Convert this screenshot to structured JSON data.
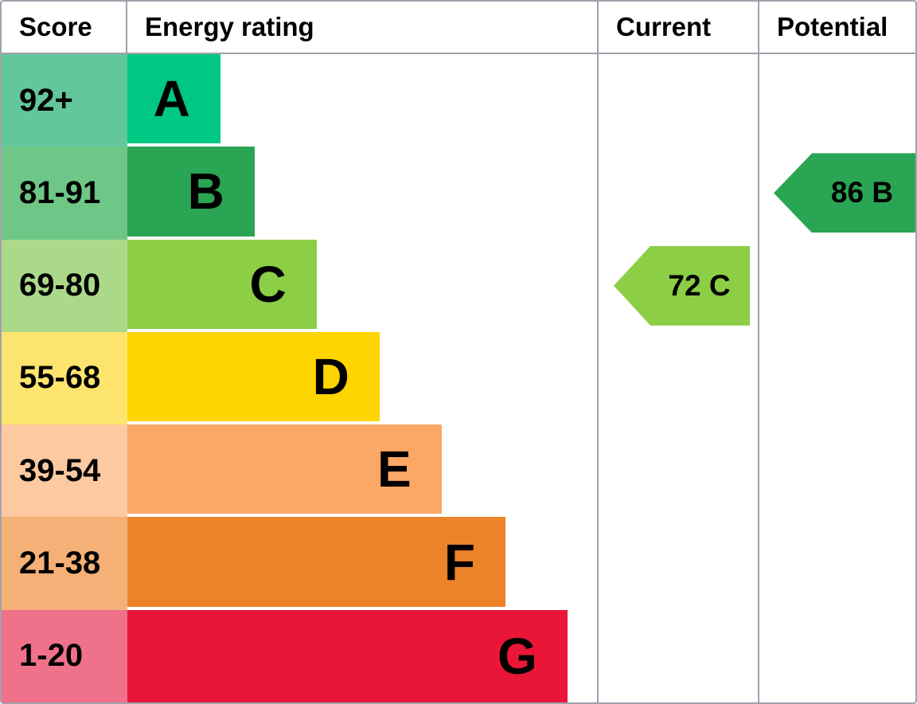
{
  "header": {
    "score": "Score",
    "energy_rating": "Energy rating",
    "current": "Current",
    "potential": "Potential"
  },
  "colors": {
    "grid_border": "#a2a2ad",
    "text": "#000000"
  },
  "bands": [
    {
      "letter": "A",
      "score": "92+",
      "cell_color": "#62c79b",
      "bar_color": "#00c781",
      "bar_width_pct": 19.8
    },
    {
      "letter": "B",
      "score": "81-91",
      "cell_color": "#6ec687",
      "bar_color": "#2aa553",
      "bar_width_pct": 27.1
    },
    {
      "letter": "C",
      "score": "69-80",
      "cell_color": "#abd989",
      "bar_color": "#8cce46",
      "bar_width_pct": 40.3
    },
    {
      "letter": "D",
      "score": "55-68",
      "cell_color": "#fde46e",
      "bar_color": "#fed401",
      "bar_width_pct": 53.7
    },
    {
      "letter": "E",
      "score": "39-54",
      "cell_color": "#fcc9a0",
      "bar_color": "#fba766",
      "bar_width_pct": 66.9
    },
    {
      "letter": "F",
      "score": "21-38",
      "cell_color": "#f4b076",
      "bar_color": "#ed8329",
      "bar_width_pct": 80.5
    },
    {
      "letter": "G",
      "score": "1-20",
      "cell_color": "#f0718a",
      "bar_color": "#ea1638",
      "bar_width_pct": 93.7
    }
  ],
  "current": {
    "label": "72 C",
    "value": 72,
    "band": "C",
    "color": "#8cce46"
  },
  "potential": {
    "label": "86 B",
    "value": 86,
    "band": "B",
    "color": "#2aa553"
  },
  "chart_data": {
    "type": "bar",
    "title": "Energy efficiency rating (EPC)",
    "orientation": "horizontal",
    "categories": [
      "A",
      "B",
      "C",
      "D",
      "E",
      "F",
      "G"
    ],
    "score_ranges": [
      "92+",
      "81-91",
      "69-80",
      "55-68",
      "39-54",
      "21-38",
      "1-20"
    ],
    "bar_lengths_pct_of_column": [
      19.8,
      27.1,
      40.3,
      53.7,
      66.9,
      80.5,
      93.7
    ],
    "bar_colors": [
      "#00c781",
      "#2aa553",
      "#8cce46",
      "#fed401",
      "#fba766",
      "#ed8329",
      "#ea1638"
    ],
    "columns": [
      "Score",
      "Energy rating",
      "Current",
      "Potential"
    ],
    "current_rating": {
      "value": 72,
      "band": "C"
    },
    "potential_rating": {
      "value": 86,
      "band": "B"
    },
    "grid": true,
    "legend": false
  }
}
